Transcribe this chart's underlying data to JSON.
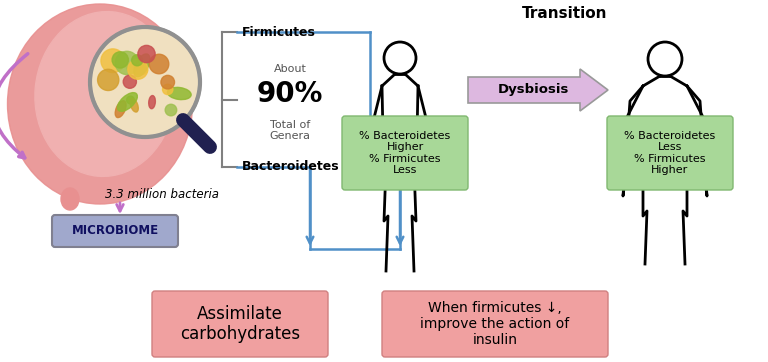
{
  "bg_color": "#ffffff",
  "title": "Transition",
  "firmicutes_label": "Firmicutes",
  "bacteroidetes_label": "Bacteroidetes",
  "about_text": "About",
  "percent_text": "90%",
  "total_text": "Total of\nGenera",
  "bacteria_text": "3.3 million bacteria",
  "microbiome_text": "MICROBIOME",
  "microbiome_bg": "#a0a8cc",
  "dysbiosis_text": "Dysbiosis",
  "dysbiosis_bg": "#ddb8e0",
  "box1_text": "% Bacteroidetes\nHigher\n% Firmicutes\nLess",
  "box2_text": "% Bacteroidetes\nLess\n% Firmicutes\nHigher",
  "green_bg": "#a8d898",
  "box3_text": "Assimilate\ncarbohydrates",
  "box4_text": "When firmicutes ↓,\nimprove the action of\ninsulin",
  "pink_bg": "#f0a0a0",
  "line_color": "#5090c8",
  "bracket_color": "#808080",
  "purple_arrow": "#c070c8",
  "mag_handle_color": "#202050",
  "intestine_color1": "#e89090",
  "intestine_color2": "#f0b0b0",
  "mag_bg": "#f0e0c0",
  "bacteria_colors": [
    "#d4a030",
    "#90b830",
    "#c85050",
    "#f0c040",
    "#d08030",
    "#a0c050"
  ]
}
